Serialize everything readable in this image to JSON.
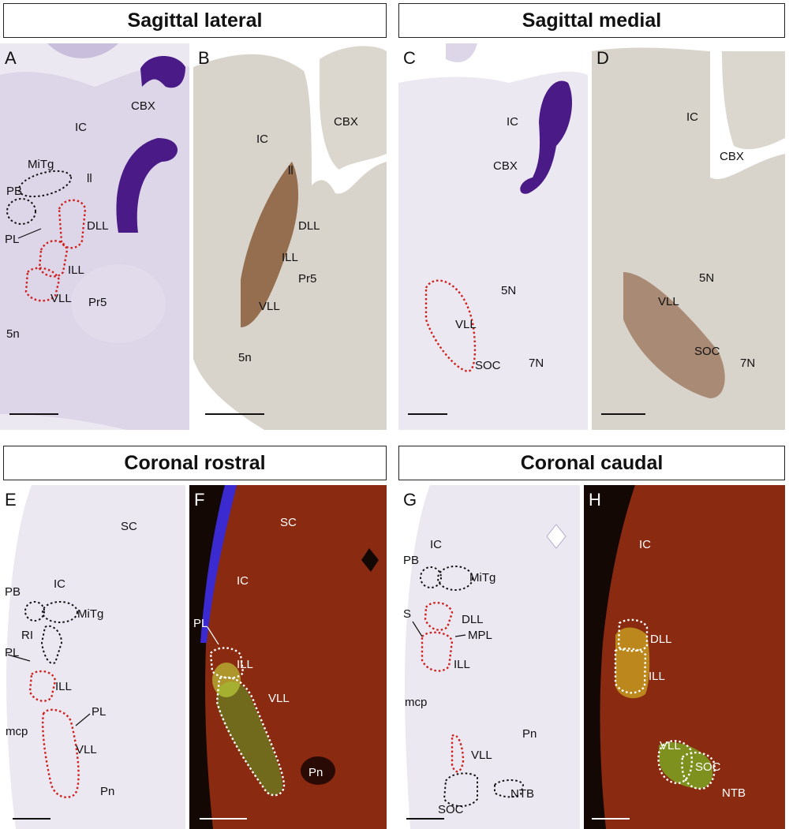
{
  "headers": {
    "sagittal_lateral": "Sagittal lateral",
    "sagittal_medial": "Sagittal medial",
    "coronal_rostral": "Coronal rostral",
    "coronal_caudal": "Coronal caudal"
  },
  "panels": {
    "A": {
      "letter": "A",
      "labels": [
        "CBX",
        "IC",
        "MiTg",
        "ll",
        "PB",
        "DLL",
        "PL",
        "ILL",
        "VLL",
        "Pr5",
        "5n"
      ]
    },
    "B": {
      "letter": "B",
      "labels": [
        "CBX",
        "IC",
        "ll",
        "DLL",
        "ILL",
        "Pr5",
        "VLL",
        "5n"
      ]
    },
    "C": {
      "letter": "C",
      "labels": [
        "IC",
        "CBX",
        "5N",
        "VLL",
        "SOC",
        "7N"
      ]
    },
    "D": {
      "letter": "D",
      "labels": [
        "IC",
        "CBX",
        "5N",
        "VLL",
        "SOC",
        "7N"
      ]
    },
    "E": {
      "letter": "E",
      "labels": [
        "SC",
        "IC",
        "PB",
        "MiTg",
        "RI",
        "PL",
        "ILL",
        "PL",
        "mcp",
        "VLL",
        "Pn"
      ]
    },
    "F": {
      "letter": "F",
      "labels": [
        "SC",
        "IC",
        "PL",
        "ILL",
        "VLL",
        "Pn"
      ]
    },
    "G": {
      "letter": "G",
      "labels": [
        "IC",
        "PB",
        "MiTg",
        "S",
        "DLL",
        "MPL",
        "ILL",
        "mcp",
        "Pn",
        "VLL",
        "NTB",
        "SOC"
      ]
    },
    "H": {
      "letter": "H",
      "labels": [
        "IC",
        "DLL",
        "ILL",
        "VLL",
        "SOC",
        "NTB"
      ]
    }
  },
  "colors": {
    "nissl_bg": "#ece8f2",
    "nissl_stain": "#4a1a86",
    "ihc_bg": "#d8d3cb",
    "ihc_stain": "#8a5a3a",
    "fluor_bg": "#8a2a10",
    "fluor_green": "#c8e040",
    "fluor_blue": "#3a2ad0",
    "outline_red": "#d0201c"
  }
}
